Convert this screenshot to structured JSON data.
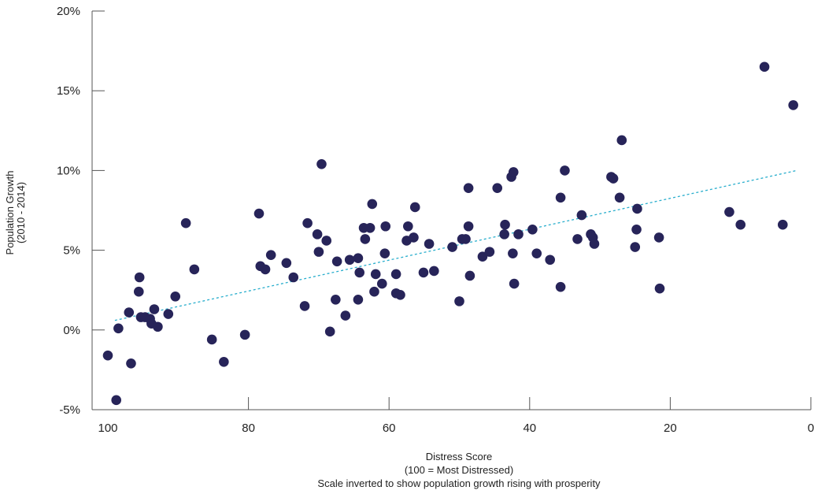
{
  "colors": {
    "point": "#272459",
    "trendline": "#29aecd",
    "axis": "#555555"
  },
  "chart_data": {
    "type": "scatter",
    "title": "",
    "xlabel": [
      "Distress Score",
      "(100 = Most Distressed)",
      "Scale inverted to show population growth rising with prosperity"
    ],
    "ylabel": [
      "Population Growth",
      "(2010 - 2014)"
    ],
    "xlim": [
      100,
      0
    ],
    "x_reversed": true,
    "ylim": [
      -5,
      20
    ],
    "x_ticks": [
      100,
      80,
      60,
      40,
      20,
      0
    ],
    "x_tick_labels": [
      "100",
      "80",
      "60",
      "40",
      "20",
      "0"
    ],
    "y_ticks": [
      -5,
      0,
      5,
      10,
      15,
      20
    ],
    "y_tick_labels": [
      "-5%",
      "0%",
      "5%",
      "10%",
      "15%",
      "20%"
    ],
    "grid": false,
    "trendline": {
      "x": [
        99,
        2
      ],
      "y": [
        0.6,
        10.0
      ]
    },
    "series": [
      {
        "points": [
          [
            100,
            -1.6
          ],
          [
            98.8,
            -4.4
          ],
          [
            98.5,
            0.1
          ],
          [
            97,
            1.1
          ],
          [
            96.7,
            -2.1
          ],
          [
            95.5,
            3.3
          ],
          [
            95.6,
            2.4
          ],
          [
            95.3,
            0.8
          ],
          [
            94.7,
            0.8
          ],
          [
            94,
            0.7
          ],
          [
            93.8,
            0.4
          ],
          [
            93.4,
            1.3
          ],
          [
            92.9,
            0.2
          ],
          [
            91.4,
            1.0
          ],
          [
            90.4,
            2.1
          ],
          [
            88.9,
            6.7
          ],
          [
            87.7,
            3.8
          ],
          [
            85.2,
            -0.6
          ],
          [
            83.5,
            -2.0
          ],
          [
            80.5,
            -0.3
          ],
          [
            78.5,
            7.3
          ],
          [
            78.3,
            4.0
          ],
          [
            77.6,
            3.8
          ],
          [
            76.8,
            4.7
          ],
          [
            74.6,
            4.2
          ],
          [
            73.6,
            3.3
          ],
          [
            72,
            1.5
          ],
          [
            71.6,
            6.7
          ],
          [
            70.2,
            6.0
          ],
          [
            70,
            4.9
          ],
          [
            69.6,
            10.4
          ],
          [
            68.9,
            5.6
          ],
          [
            68.4,
            -0.1
          ],
          [
            67.6,
            1.9
          ],
          [
            67.4,
            4.3
          ],
          [
            66.2,
            0.9
          ],
          [
            65.6,
            4.4
          ],
          [
            64.4,
            4.5
          ],
          [
            64.4,
            1.9
          ],
          [
            64.2,
            3.6
          ],
          [
            63.6,
            6.4
          ],
          [
            63.4,
            5.7
          ],
          [
            62.7,
            6.4
          ],
          [
            62.4,
            7.9
          ],
          [
            62.1,
            2.4
          ],
          [
            61.9,
            3.5
          ],
          [
            61,
            2.9
          ],
          [
            60.6,
            4.8
          ],
          [
            60.5,
            6.5
          ],
          [
            59,
            2.3
          ],
          [
            59,
            3.5
          ],
          [
            58.4,
            2.2
          ],
          [
            57.5,
            5.6
          ],
          [
            57.3,
            6.5
          ],
          [
            56.5,
            5.8
          ],
          [
            56.3,
            7.7
          ],
          [
            55.1,
            3.6
          ],
          [
            54.3,
            5.4
          ],
          [
            53.6,
            3.7
          ],
          [
            51,
            5.2
          ],
          [
            50,
            1.8
          ],
          [
            49.6,
            5.7
          ],
          [
            49.1,
            5.7
          ],
          [
            48.7,
            6.5
          ],
          [
            48.7,
            8.9
          ],
          [
            48.5,
            3.4
          ],
          [
            46.7,
            4.6
          ],
          [
            45.7,
            4.9
          ],
          [
            44.6,
            8.9
          ],
          [
            43.6,
            6.0
          ],
          [
            43.5,
            6.6
          ],
          [
            42.6,
            9.6
          ],
          [
            42.4,
            4.8
          ],
          [
            42.3,
            9.9
          ],
          [
            42.2,
            2.9
          ],
          [
            41.6,
            6.0
          ],
          [
            39.6,
            6.3
          ],
          [
            39,
            4.8
          ],
          [
            37.1,
            4.4
          ],
          [
            35.6,
            8.3
          ],
          [
            35.6,
            2.7
          ],
          [
            35,
            10.0
          ],
          [
            33.2,
            5.7
          ],
          [
            32.6,
            7.2
          ],
          [
            31.3,
            6.0
          ],
          [
            31,
            5.8
          ],
          [
            30.8,
            5.4
          ],
          [
            28.4,
            9.6
          ],
          [
            28.1,
            9.5
          ],
          [
            27.2,
            8.3
          ],
          [
            26.9,
            11.9
          ],
          [
            25,
            5.2
          ],
          [
            24.8,
            6.3
          ],
          [
            24.7,
            7.6
          ],
          [
            21.6,
            5.8
          ],
          [
            21.5,
            2.6
          ],
          [
            11.6,
            7.4
          ],
          [
            10,
            6.6
          ],
          [
            6.6,
            16.5
          ],
          [
            4,
            6.6
          ],
          [
            2.5,
            14.1
          ]
        ]
      }
    ]
  }
}
